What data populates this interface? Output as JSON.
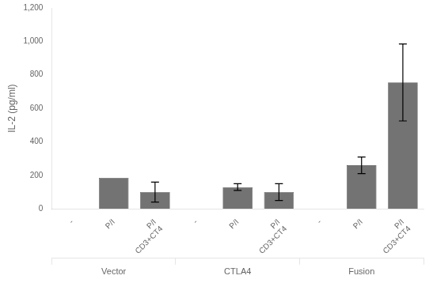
{
  "chart_data": {
    "type": "bar",
    "categories": [
      "-",
      "P/I",
      "P/I\nCD3+CT4",
      "-",
      "P/I",
      "P/I\nCD3+CT4",
      "-",
      "P/I",
      "P/I\nCD3+CT4"
    ],
    "groups": [
      "Vector",
      "CTLA4",
      "Fusion"
    ],
    "values": [
      0,
      185,
      100,
      0,
      130,
      100,
      0,
      260,
      755
    ],
    "errors": [
      0,
      0,
      60,
      0,
      20,
      50,
      0,
      50,
      230
    ],
    "color": "#737373",
    "ylabel": "IL-2 (pg/ml)",
    "ylim": [
      0,
      1200
    ],
    "yticks": [
      0,
      200,
      400,
      600,
      800,
      1000,
      1200
    ],
    "grid": false
  }
}
